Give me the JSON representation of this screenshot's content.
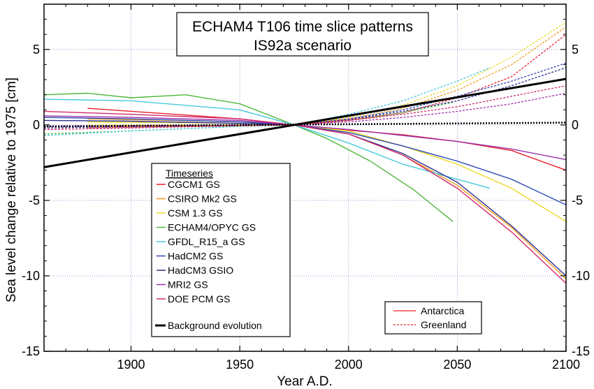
{
  "chart_data": {
    "type": "line",
    "title": "ECHAM4 T106 time slice patterns",
    "subtitle": "IS92a scenario",
    "xlabel": "Year A.D.",
    "ylabel": "Sea level change relative to 1975  [cm]",
    "xlim": [
      1860,
      2100
    ],
    "ylim": [
      -15,
      8
    ],
    "x_ticks": [
      1900,
      1950,
      2000,
      2050,
      2100
    ],
    "y_ticks": [
      5,
      0,
      -5,
      -10,
      -15
    ],
    "grid": true,
    "legend_title": "Timeseries",
    "legend_placement": "lower-left",
    "background_label": "Background evolution",
    "style_legend": {
      "solid": "Antarctica",
      "dashed": "Greenland"
    },
    "models": [
      {
        "name": "CGCM1 GS",
        "color": "#e8202a",
        "antarctica": {
          "x": [
            1880,
            1920,
            1950,
            1975,
            2000,
            2025,
            2050,
            2075,
            2100
          ],
          "y": [
            1.1,
            0.7,
            0.4,
            0.0,
            -0.35,
            -0.65,
            -1.1,
            -1.7,
            -3.0
          ]
        },
        "greenland": {
          "x": [
            1880,
            1920,
            1950,
            1975,
            2000,
            2025,
            2050,
            2075,
            2100
          ],
          "y": [
            -0.2,
            -0.1,
            -0.05,
            0.0,
            0.3,
            0.8,
            1.8,
            3.2,
            6.0
          ]
        }
      },
      {
        "name": "CSIRO Mk2 GS",
        "color": "#f39a1e",
        "antarctica": {
          "x": [
            1880,
            1920,
            1950,
            1975,
            2000,
            2025,
            2050,
            2075,
            2100
          ],
          "y": [
            0.4,
            0.3,
            0.2,
            0.0,
            -0.6,
            -2.0,
            -4.0,
            -6.8,
            -10.2
          ]
        },
        "greenland": {
          "x": [
            1880,
            1920,
            1950,
            1975,
            2000,
            2025,
            2050,
            2075,
            2100
          ],
          "y": [
            -0.1,
            -0.05,
            0.0,
            0.0,
            0.4,
            1.1,
            2.3,
            4.0,
            6.5
          ]
        }
      },
      {
        "name": "CSM 1.3 GS",
        "color": "#ecd92a",
        "antarctica": {
          "x": [
            1880,
            1920,
            1950,
            1975,
            2000,
            2025,
            2050,
            2075,
            2100
          ],
          "y": [
            0.2,
            0.15,
            0.1,
            0.0,
            -0.4,
            -1.4,
            -2.6,
            -4.2,
            -6.4
          ]
        },
        "greenland": {
          "x": [
            1880,
            1920,
            1950,
            1975,
            2000,
            2025,
            2050,
            2075,
            2100
          ],
          "y": [
            0.0,
            0.0,
            0.0,
            0.0,
            0.5,
            1.3,
            2.6,
            4.5,
            6.8
          ]
        }
      },
      {
        "name": "ECHAM4/OPYC GS",
        "color": "#4fb83a",
        "antarctica": {
          "x": [
            1860,
            1880,
            1900,
            1925,
            1950,
            1975,
            1990,
            2010,
            2030,
            2048
          ],
          "y": [
            2.0,
            2.1,
            1.8,
            2.0,
            1.4,
            0.0,
            -0.9,
            -2.4,
            -4.3,
            -6.4
          ]
        },
        "greenland": {
          "x": [
            1860,
            1900,
            1950,
            1975,
            2000,
            2025,
            2048
          ],
          "y": [
            -0.6,
            -0.4,
            -0.1,
            0.0,
            0.3,
            0.8,
            1.5
          ]
        }
      },
      {
        "name": "GFDL_R15_a GS",
        "color": "#45c8dc",
        "antarctica": {
          "x": [
            1860,
            1900,
            1950,
            1975,
            2000,
            2025,
            2050,
            2065
          ],
          "y": [
            1.7,
            1.6,
            1.0,
            0.0,
            -1.2,
            -2.6,
            -3.6,
            -4.2
          ]
        },
        "greenland": {
          "x": [
            1860,
            1900,
            1950,
            1975,
            2000,
            2025,
            2050,
            2065
          ],
          "y": [
            -0.7,
            -0.4,
            -0.1,
            0.0,
            0.7,
            1.6,
            2.9,
            3.8
          ]
        }
      },
      {
        "name": "HadCM2 GS",
        "color": "#2e4bb5",
        "antarctica": {
          "x": [
            1860,
            1900,
            1950,
            1975,
            2000,
            2025,
            2050,
            2075,
            2100
          ],
          "y": [
            0.5,
            0.4,
            0.2,
            0.0,
            -0.5,
            -1.4,
            -2.4,
            -3.6,
            -5.3
          ]
        },
        "greenland": {
          "x": [
            1860,
            1900,
            1950,
            1975,
            2000,
            2025,
            2050,
            2075,
            2100
          ],
          "y": [
            -0.3,
            -0.2,
            -0.05,
            0.0,
            0.4,
            1.0,
            1.9,
            2.9,
            4.1
          ]
        }
      },
      {
        "name": "HadCM3 GSIO",
        "color": "#2a2f8f",
        "antarctica": {
          "x": [
            1860,
            1900,
            1950,
            1975,
            2000,
            2025,
            2050,
            2075,
            2100
          ],
          "y": [
            0.3,
            0.25,
            0.1,
            0.0,
            -0.6,
            -1.9,
            -3.8,
            -6.7,
            -10.0
          ]
        },
        "greenland": {
          "x": [
            1860,
            1900,
            1950,
            1975,
            2000,
            2025,
            2050,
            2075,
            2100
          ],
          "y": [
            -0.2,
            -0.1,
            0.0,
            0.0,
            0.35,
            0.9,
            1.6,
            2.6,
            3.8
          ]
        }
      },
      {
        "name": "MRI2 GS",
        "color": "#9b2fa8",
        "antarctica": {
          "x": [
            1860,
            1900,
            1950,
            1975,
            2000,
            2025,
            2050,
            2075,
            2100
          ],
          "y": [
            0.6,
            0.5,
            0.3,
            0.0,
            -0.3,
            -0.7,
            -1.1,
            -1.6,
            -2.3
          ]
        },
        "greenland": {
          "x": [
            1860,
            1900,
            1950,
            1975,
            2000,
            2025,
            2050,
            2075,
            2100
          ],
          "y": [
            -0.1,
            -0.05,
            0.0,
            0.0,
            0.2,
            0.5,
            0.9,
            1.4,
            2.1
          ]
        }
      },
      {
        "name": "DOE PCM GS",
        "color": "#d12a6e",
        "antarctica": {
          "x": [
            1860,
            1900,
            1950,
            1975,
            2000,
            2025,
            2050,
            2075,
            2100
          ],
          "y": [
            0.9,
            0.7,
            0.4,
            0.0,
            -0.6,
            -2.0,
            -4.2,
            -7.1,
            -10.5
          ]
        },
        "greenland": {
          "x": [
            1860,
            1900,
            1950,
            1975,
            2000,
            2025,
            2050,
            2075,
            2100
          ],
          "y": [
            -0.3,
            -0.2,
            -0.05,
            0.0,
            0.3,
            0.7,
            1.2,
            1.9,
            2.6
          ]
        }
      }
    ],
    "background": {
      "x": [
        1860,
        2100
      ],
      "y": [
        -2.8,
        3.05
      ]
    },
    "zero_reference": {
      "x": [
        1860,
        2100
      ],
      "y": [
        -0.1,
        0.15
      ]
    }
  }
}
